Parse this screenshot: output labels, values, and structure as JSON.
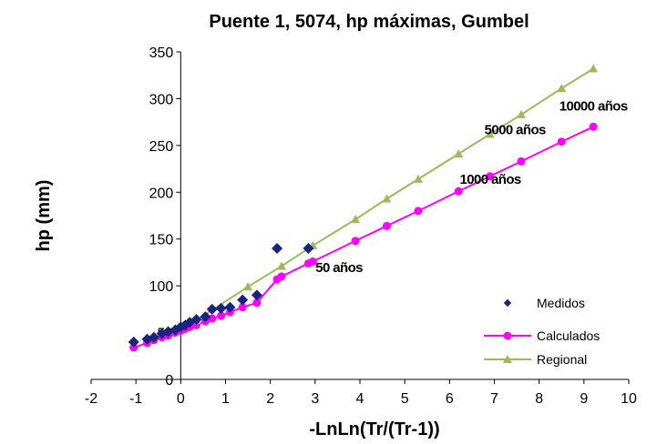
{
  "chart_data": {
    "type": "scatter",
    "title": "Puente 1, 5074, hp máximas, Gumbel",
    "xlabel": "-LnLn(Tr/(Tr-1))",
    "ylabel": "hp (mm)",
    "xlim": [
      -2,
      10
    ],
    "ylim": [
      0,
      350
    ],
    "xticks": [
      -2,
      -1,
      0,
      1,
      2,
      3,
      4,
      5,
      6,
      7,
      8,
      9,
      10
    ],
    "yticks": [
      0,
      50,
      100,
      150,
      200,
      250,
      300,
      350
    ],
    "grid": false,
    "legend_position": "bottom-right",
    "series": [
      {
        "name": "Medidos",
        "marker": "diamond",
        "color": "#1a237e",
        "line": false,
        "x": [
          -1.05,
          -0.75,
          -0.6,
          -0.42,
          -0.28,
          -0.12,
          0.0,
          0.1,
          0.2,
          0.35,
          0.55,
          0.7,
          0.9,
          1.1,
          1.38,
          1.7,
          2.15,
          2.85
        ],
        "y": [
          40,
          43,
          45,
          49,
          51,
          53,
          56,
          58,
          61,
          64,
          67,
          75,
          76,
          77,
          85,
          90,
          140,
          140
        ]
      },
      {
        "name": "Calculados",
        "marker": "circle",
        "color": "#ff00ff",
        "line": true,
        "x": [
          -1.05,
          -0.75,
          -0.6,
          -0.42,
          -0.28,
          -0.12,
          0.0,
          0.1,
          0.2,
          0.35,
          0.55,
          0.7,
          0.9,
          1.1,
          1.38,
          1.7,
          2.15,
          2.25,
          2.85,
          2.95,
          3.9,
          4.6,
          5.3,
          6.2,
          6.9,
          7.6,
          8.5,
          9.21
        ],
        "y": [
          34,
          39,
          42,
          45,
          47,
          50,
          52,
          54,
          56,
          58,
          62,
          65,
          68,
          72,
          77,
          82,
          107,
          110,
          124,
          126,
          148,
          164,
          180,
          201,
          217,
          233,
          254,
          270
        ]
      },
      {
        "name": "Regional",
        "marker": "triangle",
        "color": "#9bbb59",
        "line": true,
        "x": [
          0.35,
          1.5,
          2.25,
          2.95,
          3.9,
          4.6,
          5.3,
          6.2,
          6.9,
          7.6,
          8.5,
          9.21
        ],
        "y": [
          63,
          99,
          121,
          143,
          171,
          193,
          214,
          241,
          262,
          283,
          311,
          332
        ]
      }
    ],
    "annotations": [
      {
        "text": "10000 años",
        "x": 9.21,
        "y": 270
      },
      {
        "text": "5000 años",
        "x": 8.52,
        "y": 254
      },
      {
        "text": "1000 años",
        "x": 6.91,
        "y": 217
      },
      {
        "text": "50 años",
        "x": 3.9,
        "y": 148
      }
    ]
  }
}
